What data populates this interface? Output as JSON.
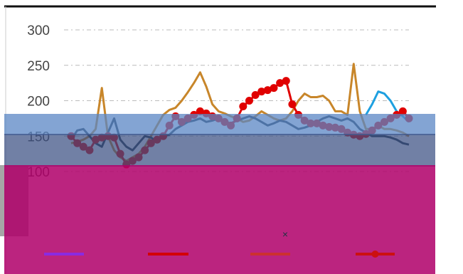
{
  "chart_data": {
    "type": "line",
    "ylim": [
      50,
      300
    ],
    "yticks": [
      100,
      150,
      200,
      250,
      300
    ],
    "ytick_labels": [
      "100",
      "150",
      "200",
      "250",
      "300"
    ],
    "grid": true,
    "legend_placement": "bottom",
    "points": 56,
    "series": [
      {
        "color": "#c8862a",
        "markers": false,
        "values": [
          140,
          142,
          145,
          150,
          160,
          218,
          150,
          130,
          120,
          115,
          120,
          125,
          135,
          150,
          165,
          180,
          187,
          190,
          200,
          212,
          225,
          240,
          220,
          195,
          185,
          182,
          178,
          175,
          170,
          172,
          178,
          185,
          180,
          175,
          172,
          175,
          185,
          200,
          210,
          205,
          205,
          207,
          200,
          185,
          185,
          180,
          252,
          185,
          160,
          160,
          165,
          160,
          160,
          158,
          155,
          150
        ]
      },
      {
        "color": "#1ea0e0",
        "markers": false,
        "values": [
          null,
          null,
          null,
          null,
          null,
          null,
          null,
          null,
          null,
          null,
          null,
          null,
          null,
          null,
          null,
          null,
          null,
          null,
          null,
          null,
          null,
          null,
          null,
          null,
          null,
          null,
          null,
          null,
          null,
          null,
          null,
          null,
          null,
          null,
          null,
          null,
          null,
          null,
          null,
          null,
          null,
          null,
          null,
          null,
          null,
          null,
          null,
          null,
          180,
          195,
          213,
          210,
          200,
          185,
          178,
          170
        ]
      },
      {
        "color": "#2a3b4a",
        "markers": false,
        "values": [
          145,
          158,
          160,
          150,
          140,
          135,
          155,
          175,
          145,
          135,
          130,
          140,
          150,
          148,
          142,
          150,
          152,
          160,
          165,
          170,
          172,
          175,
          170,
          172,
          175,
          170,
          168,
          172,
          175,
          178,
          175,
          170,
          165,
          168,
          172,
          170,
          165,
          160,
          162,
          165,
          170,
          175,
          178,
          175,
          172,
          175,
          170,
          160,
          155,
          150,
          150,
          150,
          148,
          145,
          140,
          138
        ]
      },
      {
        "color": "#e00000",
        "markers": true,
        "values": [
          150,
          140,
          135,
          130,
          145,
          148,
          150,
          148,
          125,
          110,
          115,
          120,
          130,
          140,
          145,
          150,
          165,
          178,
          170,
          175,
          180,
          185,
          182,
          178,
          175,
          170,
          165,
          175,
          192,
          200,
          208,
          213,
          215,
          218,
          225,
          228,
          195,
          180,
          172,
          168,
          168,
          165,
          163,
          162,
          160,
          155,
          152,
          150,
          153,
          158,
          165,
          170,
          175,
          180,
          185,
          175
        ]
      }
    ],
    "legend_marker": "×"
  }
}
